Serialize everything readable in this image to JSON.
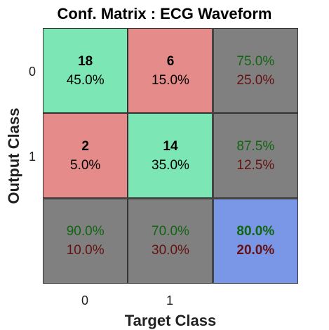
{
  "chart_data": {
    "type": "heatmap",
    "title": "Conf. Matrix : ECG Waveform",
    "xlabel": "Target Class",
    "ylabel": "Output Class",
    "x_ticks": [
      "0",
      "1"
    ],
    "y_ticks": [
      "0",
      "1"
    ],
    "cells": [
      [
        {
          "count": "18",
          "percent": "45.0%",
          "kind": "correct"
        },
        {
          "count": "6",
          "percent": "15.0%",
          "kind": "wrong"
        },
        {
          "good": "75.0%",
          "bad": "25.0%",
          "kind": "summary"
        }
      ],
      [
        {
          "count": "2",
          "percent": "5.0%",
          "kind": "wrong"
        },
        {
          "count": "14",
          "percent": "35.0%",
          "kind": "correct"
        },
        {
          "good": "87.5%",
          "bad": "12.5%",
          "kind": "summary"
        }
      ],
      [
        {
          "good": "90.0%",
          "bad": "10.0%",
          "kind": "summary"
        },
        {
          "good": "70.0%",
          "bad": "30.0%",
          "kind": "summary"
        },
        {
          "good": "80.0%",
          "bad": "20.0%",
          "kind": "total"
        }
      ]
    ]
  },
  "colors": {
    "correct": "#7ce6b4",
    "wrong": "#e58b8a",
    "summary": "#808080",
    "total": "#7a96e6",
    "good_text": "#116611",
    "bad_text": "#661111"
  }
}
